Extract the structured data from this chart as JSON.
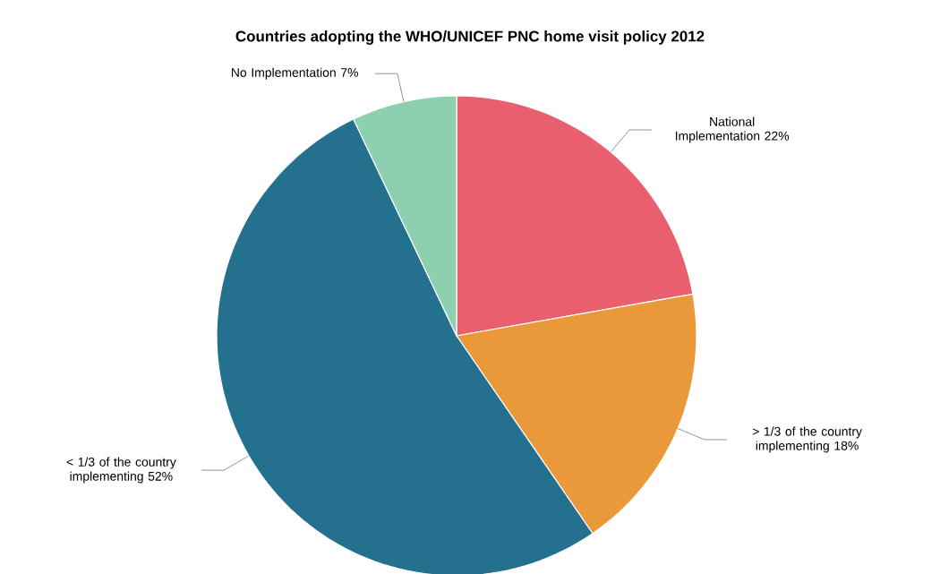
{
  "chart_data": {
    "type": "pie",
    "title": "Countries adopting the WHO/UNICEF PNC home visit policy 2012",
    "categories": [
      "National Implementation",
      "> 1/3 of the country implementing",
      "< 1/3 of the country implementing",
      "No Implementation"
    ],
    "values": [
      22,
      18,
      52,
      7
    ],
    "value_labels": [
      "22%",
      "18%",
      "52%",
      "7%"
    ],
    "colors": [
      "#e8606f",
      "#e9993a",
      "#24708f",
      "#8dd0b0"
    ]
  }
}
